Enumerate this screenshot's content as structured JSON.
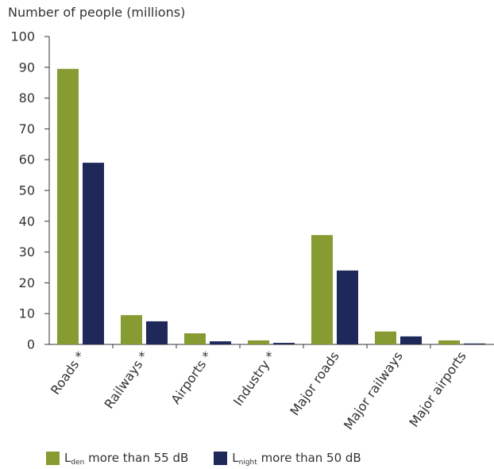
{
  "chart_data": {
    "type": "bar",
    "ylabel": "Number of people (millions)",
    "ylim": [
      0,
      100
    ],
    "yticks": [
      0,
      10,
      20,
      30,
      40,
      50,
      60,
      70,
      80,
      90,
      100
    ],
    "categories": [
      "Roads *",
      "Railways *",
      "Airports *",
      "Industry *",
      "Major roads",
      "Major railways",
      "Major airports"
    ],
    "series": [
      {
        "name": "more than 55 dB",
        "symbol": "L",
        "subscript": "den",
        "color": "#869b32",
        "values": [
          89.5,
          9.5,
          3.6,
          1.3,
          35.5,
          4.2,
          1.3
        ]
      },
      {
        "name": "more than 50 dB",
        "symbol": "L",
        "subscript": "night",
        "color": "#1e2859",
        "values": [
          59,
          7.5,
          1.0,
          0.5,
          24,
          2.6,
          0.3
        ]
      }
    ],
    "grid": false,
    "legend_position": "bottom"
  }
}
